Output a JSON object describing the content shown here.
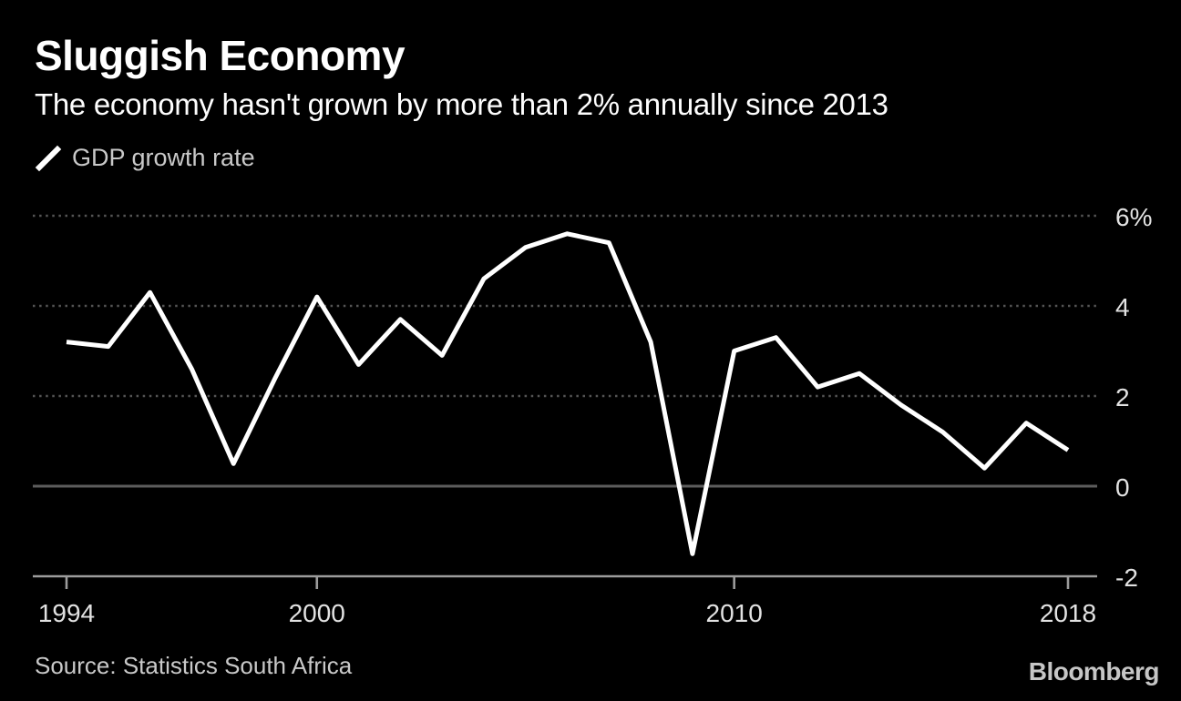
{
  "header": {
    "title": "Sluggish Economy",
    "subtitle": "The economy hasn't grown by more than 2% annually since 2013"
  },
  "legend": {
    "series_label": "GDP growth rate"
  },
  "footer": {
    "source": "Source: Statistics South Africa",
    "brand": "Bloomberg"
  },
  "colors": {
    "background": "#000000",
    "line": "#ffffff",
    "dotted_grid": "#545454",
    "zero_line": "#5c5c5c",
    "axis": "#9c9c9c",
    "tick_label": "#e2e2e2",
    "secondary_text": "#c9c9c9"
  },
  "chart_data": {
    "type": "line",
    "title": "Sluggish Economy",
    "subtitle": "The economy hasn't grown by more than 2% annually since 2013",
    "legend": [
      "GDP growth rate"
    ],
    "legend_position": "top-left",
    "grid": "horizontal-dotted",
    "unit": "%",
    "x": [
      1994,
      1995,
      1996,
      1997,
      1998,
      1999,
      2000,
      2001,
      2002,
      2003,
      2004,
      2005,
      2006,
      2007,
      2008,
      2009,
      2010,
      2011,
      2012,
      2013,
      2014,
      2015,
      2016,
      2017,
      2018
    ],
    "series": [
      {
        "name": "GDP growth rate",
        "values": [
          3.2,
          3.1,
          4.3,
          2.6,
          0.5,
          2.4,
          4.2,
          2.7,
          3.7,
          2.9,
          4.6,
          5.3,
          5.6,
          5.4,
          3.2,
          -1.5,
          3.0,
          3.3,
          2.2,
          2.5,
          1.8,
          1.2,
          0.4,
          1.4,
          0.8
        ]
      }
    ],
    "ylim": [
      -2,
      6
    ],
    "y_ticks": {
      "values": [
        6,
        4,
        2,
        0,
        -2
      ],
      "labels": [
        "6%",
        "4",
        "2",
        "0",
        "-2"
      ]
    },
    "x_ticks": {
      "values": [
        1994,
        2000,
        2010,
        2018
      ],
      "labels": [
        "1994",
        "2000",
        "2010",
        "2018"
      ]
    },
    "source": "Statistics South Africa"
  }
}
